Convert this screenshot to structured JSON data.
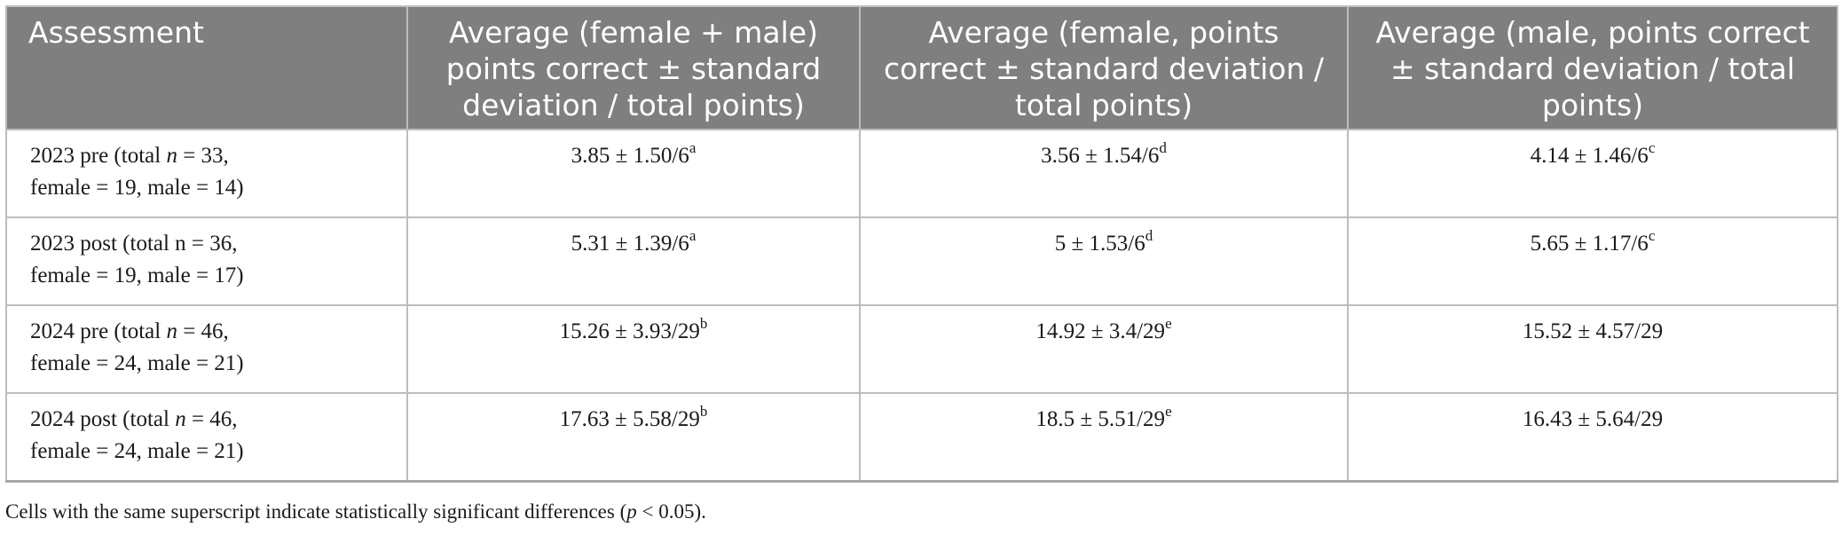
{
  "table": {
    "headers": [
      "Assessment",
      "Average (female + male) points correct ± standard deviation / total points)",
      "Average (female, points correct ± standard deviation / total points)",
      "Average (male, points correct ± standard deviation / total points)"
    ],
    "rows": [
      {
        "label_a": "2023 pre (total ",
        "label_n": "n",
        "label_b": " = 33,",
        "label_c": "female = 19, male = 14)",
        "cells": [
          {
            "value": "3.85 ± 1.50/6",
            "sup": "a"
          },
          {
            "value": "3.56 ± 1.54/6",
            "sup": "d"
          },
          {
            "value": "4.14 ± 1.46/6",
            "sup": "c"
          }
        ]
      },
      {
        "label_a": "2023 post (total n = 36,",
        "label_n": "",
        "label_b": "",
        "label_c": "female = 19, male = 17)",
        "cells": [
          {
            "value": "5.31 ± 1.39/6",
            "sup": "a"
          },
          {
            "value": "5 ± 1.53/6",
            "sup": "d"
          },
          {
            "value": "5.65 ± 1.17/6",
            "sup": "c"
          }
        ]
      },
      {
        "label_a": "2024 pre (total ",
        "label_n": "n",
        "label_b": " = 46,",
        "label_c": "female = 24, male = 21)",
        "cells": [
          {
            "value": "15.26 ± 3.93/29",
            "sup": "b"
          },
          {
            "value": "14.92 ± 3.4/29",
            "sup": "e"
          },
          {
            "value": "15.52 ± 4.57/29",
            "sup": ""
          }
        ]
      },
      {
        "label_a": "2024 post (total ",
        "label_n": "n",
        "label_b": " = 46,",
        "label_c": "female = 24, male = 21)",
        "cells": [
          {
            "value": "17.63 ± 5.58/29",
            "sup": "b"
          },
          {
            "value": "18.5 ± 5.51/29",
            "sup": "e"
          },
          {
            "value": "16.43 ± 5.64/29",
            "sup": ""
          }
        ]
      }
    ]
  },
  "footnote": {
    "before": "Cells with the same superscript indicate statistically significant differences (",
    "p": "p",
    "after": " < 0.05)."
  }
}
